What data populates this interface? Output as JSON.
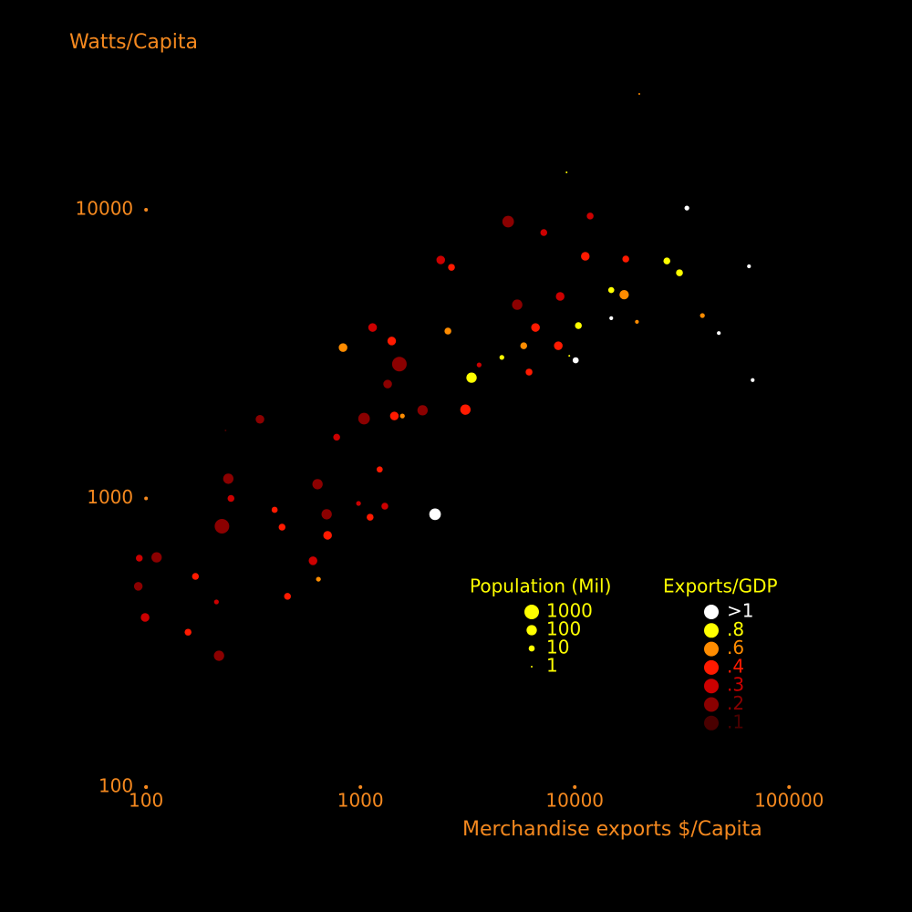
{
  "chart_data": {
    "type": "bubble",
    "ylabel": "Watts/Capita",
    "xlabel": "Merchandise exports $/Capita",
    "xscale": "log",
    "yscale": "log",
    "xlim": [
      60,
      200000
    ],
    "ylim": [
      100,
      30000
    ],
    "xticks": [
      100,
      1000,
      10000,
      100000
    ],
    "yticks": [
      100,
      1000,
      10000
    ],
    "axis_color": "#f5891f",
    "size_legend": {
      "title": "Population (Mil)",
      "values": [
        1000,
        100,
        10,
        1
      ],
      "color": "#ffff00"
    },
    "legend_title": "Exports/GDP",
    "series": [
      {
        "name": ">1",
        "color": "#ffffff",
        "x": [
          33350,
          65000,
          47000,
          67600,
          14800,
          10100,
          2230
        ],
        "y": [
          10140,
          6370,
          3740,
          2570,
          4210,
          3010,
          881
        ],
        "size": [
          5,
          3,
          3,
          3,
          3,
          10,
          200
        ]
      },
      {
        "name": ".8",
        "color": "#ffff00",
        "x": [
          26900,
          30800,
          14800,
          10400,
          3300,
          4570,
          9160,
          9430
        ],
        "y": [
          6650,
          6050,
          5270,
          3970,
          2620,
          3080,
          13480,
          3120
        ],
        "size": [
          15,
          15,
          10,
          15,
          100,
          5,
          1,
          1
        ]
      },
      {
        "name": ".6",
        "color": "#ff8c00",
        "x": [
          20000,
          39400,
          19500,
          5780,
          2560,
          1570,
          637,
          830,
          17000
        ],
        "y": [
          25200,
          4300,
          4090,
          3380,
          3800,
          1930,
          525,
          3330,
          5080
        ],
        "size": [
          1,
          5,
          3,
          15,
          15,
          5,
          5,
          40,
          60
        ]
      },
      {
        "name": ".4",
        "color": "#ff1a00",
        "x": [
          11200,
          8380,
          6120,
          3090,
          6560,
          1400,
          1230,
          1440,
          398,
          703,
          457,
          170,
          431,
          157,
          17300,
          2660,
          1110
        ],
        "y": [
          6900,
          3380,
          2740,
          2030,
          3910,
          3510,
          1260,
          1930,
          913,
          745,
          458,
          537,
          795,
          344,
          6750,
          6320,
          861
        ],
        "size": [
          40,
          40,
          15,
          100,
          40,
          40,
          10,
          40,
          10,
          40,
          15,
          15,
          15,
          15,
          15,
          15,
          15
        ]
      },
      {
        "name": ".3",
        "color": "#cc0000",
        "x": [
          11800,
          8550,
          2370,
          1140,
          7170,
          249,
          601,
          93,
          99,
          213,
          980,
          1300,
          775,
          3580
        ],
        "y": [
          9510,
          5010,
          6700,
          3910,
          8340,
          1000,
          608,
          621,
          387,
          438,
          961,
          940,
          1630,
          2900
        ],
        "size": [
          15,
          40,
          40,
          40,
          15,
          15,
          40,
          15,
          40,
          5,
          5,
          15,
          15,
          5
        ]
      },
      {
        "name": ".2",
        "color": "#8b0000",
        "x": [
          4890,
          5390,
          1520,
          1040,
          1950,
          696,
          631,
          226,
          112,
          219,
          92,
          1340,
          340,
          242
        ],
        "y": [
          9100,
          4690,
          2920,
          1890,
          2020,
          881,
          1120,
          801,
          625,
          285,
          496,
          2490,
          1880,
          1170
        ],
        "size": [
          200,
          100,
          1000,
          200,
          100,
          100,
          100,
          1000,
          100,
          100,
          40,
          40,
          40,
          100
        ]
      },
      {
        "name": ".1",
        "color": "#4a0000",
        "x": [
          235
        ],
        "y": [
          1720
        ],
        "size": [
          1
        ]
      }
    ]
  }
}
